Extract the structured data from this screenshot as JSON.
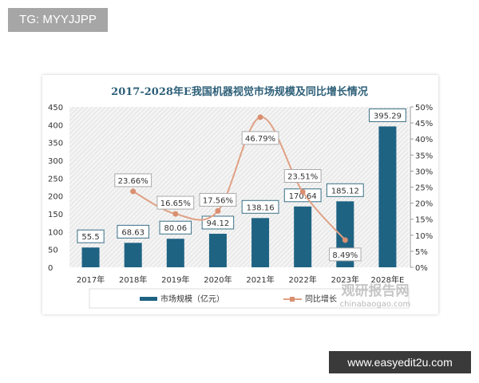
{
  "tag": "TG: MYYJJPP",
  "watermark": "www.easyedit2u.com",
  "logo": {
    "name": "观研报告网",
    "url": "chinabaogao.com"
  },
  "chart_data": {
    "type": "bar",
    "title": "2017-2028年E我国机器视觉市场规模及同比增长情况",
    "categories": [
      "2017年",
      "2018年",
      "2019年",
      "2020年",
      "2021年",
      "2022年",
      "2023年",
      "2028年E"
    ],
    "series": [
      {
        "name": "市场规模（亿元）",
        "type": "bar",
        "axis": "left",
        "color": "#1f6383",
        "values": [
          55.5,
          68.63,
          80.06,
          94.12,
          138.16,
          170.64,
          185.12,
          395.29
        ],
        "labels": [
          "55.5",
          "68.63",
          "80.06",
          "94.12",
          "138.16",
          "170.64",
          "185.12",
          "395.29"
        ]
      },
      {
        "name": "同比增长",
        "type": "line",
        "axis": "right",
        "color": "#e0a184",
        "values": [
          null,
          23.66,
          16.65,
          17.56,
          46.79,
          23.51,
          8.49,
          null
        ],
        "labels": [
          "",
          "23.66%",
          "16.65%",
          "17.56%",
          "46.79%",
          "23.51%",
          "8.49%",
          ""
        ]
      }
    ],
    "y_left": {
      "ylim": [
        0,
        450
      ],
      "ticks": [
        "0",
        "50",
        "100",
        "150",
        "200",
        "250",
        "300",
        "350",
        "400",
        "450"
      ]
    },
    "y_right": {
      "ylim": [
        0,
        50
      ],
      "ticks": [
        "0%",
        "5%",
        "10%",
        "15%",
        "20%",
        "25%",
        "30%",
        "35%",
        "40%",
        "45%",
        "50%"
      ]
    },
    "legend": "bottom",
    "grid": false
  }
}
